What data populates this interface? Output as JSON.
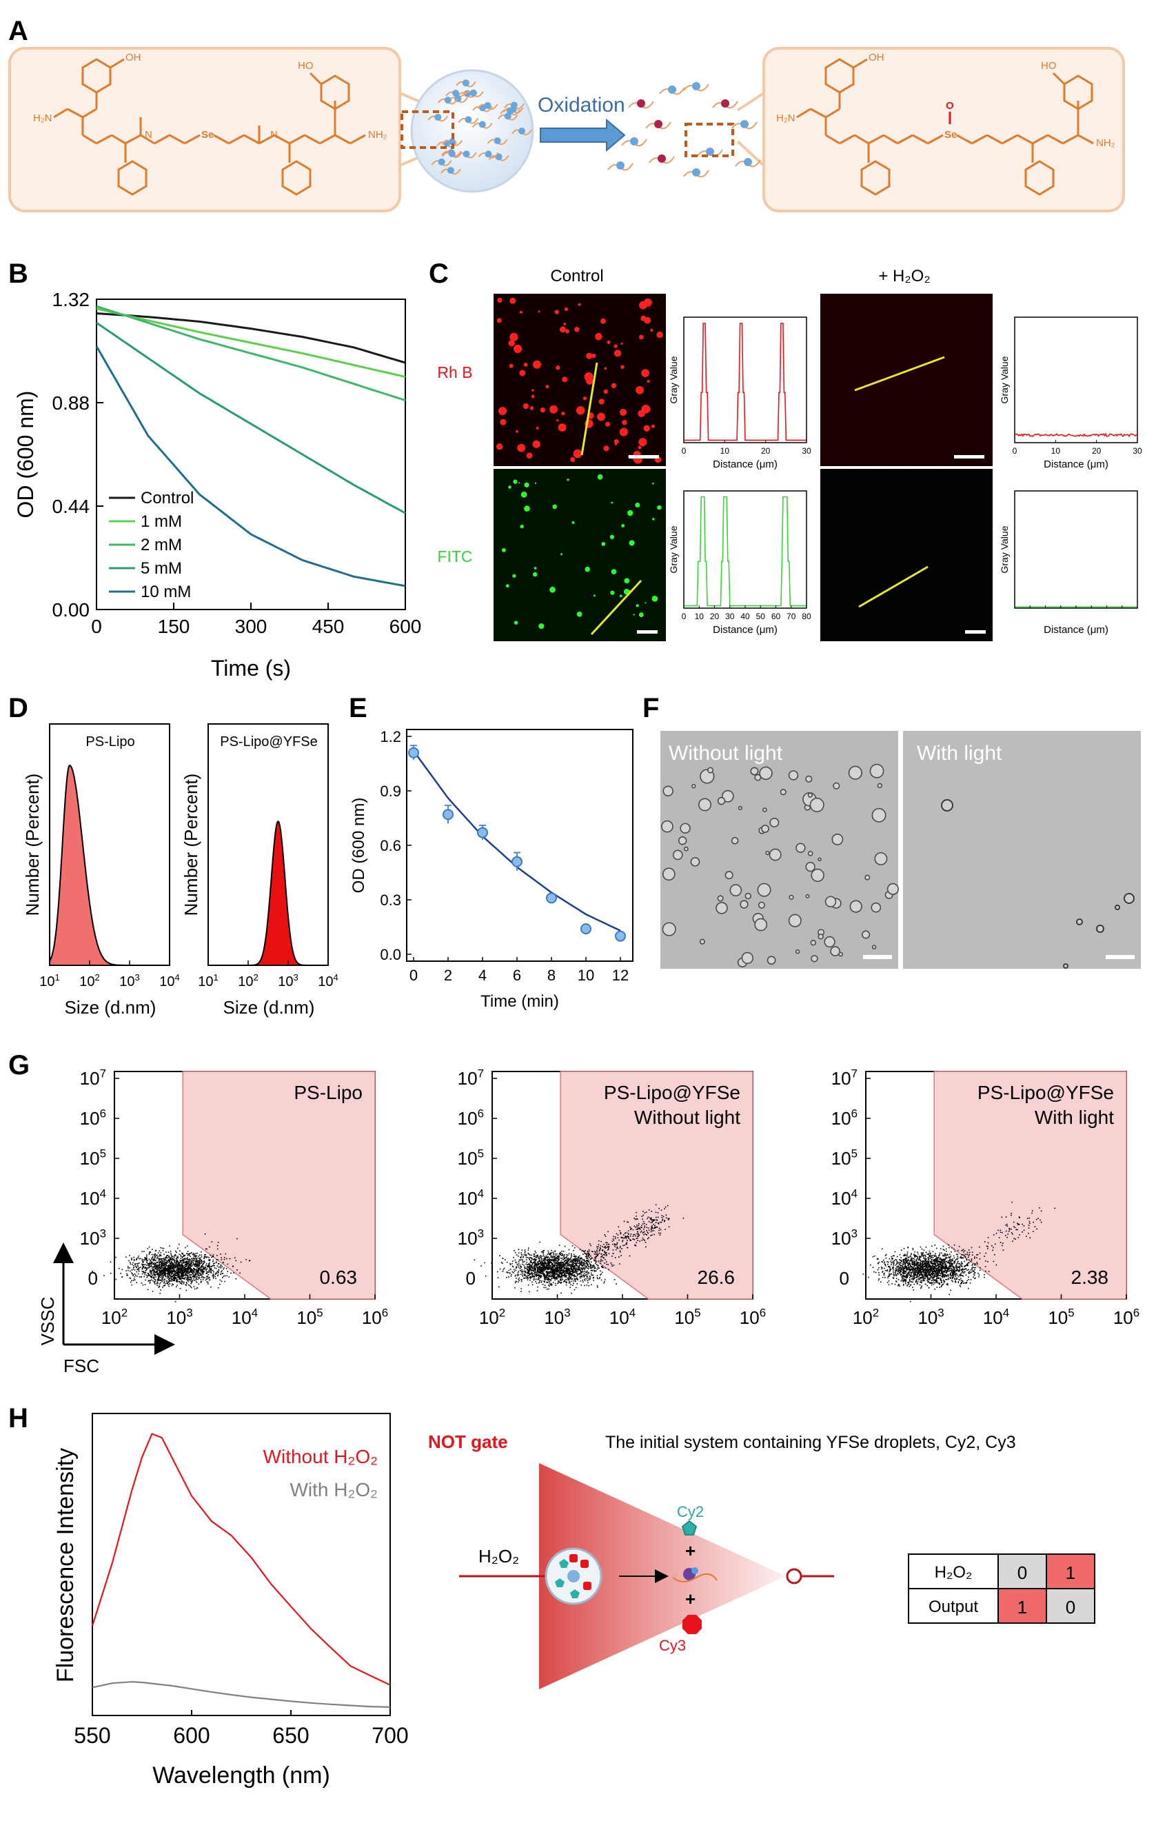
{
  "panel_labels": {
    "A": "A",
    "B": "B",
    "C": "C",
    "D": "D",
    "E": "E",
    "F": "F",
    "G": "G",
    "H": "H"
  },
  "colors": {
    "orange": "#e07a2c",
    "peach_bg": "#fdf0e6",
    "peach_border": "#f4c9a8",
    "red": "#e8141c",
    "green": "#3ad13a",
    "gate_pink": "#f6cccc",
    "arrow_blue": "#5b9bd5"
  },
  "panel_a": {
    "oxidation_label": "Oxidation",
    "atom_se": "Se",
    "atom_o": "O",
    "atom_oh": "OH",
    "atom_ho": "HO",
    "atom_h2n": "H₂N",
    "atom_nh2": "NH₂",
    "atom_n": "N",
    "atom_h": "H"
  },
  "chart_data": [
    {
      "id": "B",
      "type": "line",
      "title": "",
      "xlabel": "Time (s)",
      "ylabel": "OD (600 nm)",
      "xlim": [
        0,
        600
      ],
      "ylim": [
        0,
        1.32
      ],
      "xticks": [
        "0",
        "150",
        "300",
        "450",
        "600"
      ],
      "yticks": [
        "0.00",
        "0.44",
        "0.88",
        "1.32"
      ],
      "x": [
        0,
        100,
        200,
        300,
        400,
        500,
        600
      ],
      "series": [
        {
          "name": "Control",
          "color": "#1a1a1a",
          "values": [
            1.26,
            1.245,
            1.225,
            1.195,
            1.16,
            1.115,
            1.05
          ]
        },
        {
          "name": "1 mM",
          "color": "#5ccf4f",
          "values": [
            1.28,
            1.23,
            1.18,
            1.135,
            1.09,
            1.04,
            0.99
          ]
        },
        {
          "name": "2 mM",
          "color": "#3cb86a",
          "values": [
            1.29,
            1.22,
            1.15,
            1.09,
            1.03,
            0.96,
            0.89
          ]
        },
        {
          "name": "5 mM",
          "color": "#2a9a78",
          "values": [
            1.22,
            1.07,
            0.92,
            0.79,
            0.66,
            0.53,
            0.41
          ]
        },
        {
          "name": "10 mM",
          "color": "#1f6e8c",
          "values": [
            1.12,
            0.74,
            0.49,
            0.32,
            0.21,
            0.14,
            0.1
          ]
        }
      ]
    },
    {
      "id": "E",
      "type": "scatter",
      "xlabel": "Time (min)",
      "ylabel": "OD (600 nm)",
      "xlim": [
        0,
        12
      ],
      "ylim": [
        0,
        1.2
      ],
      "xticks": [
        "0",
        "2",
        "4",
        "6",
        "8",
        "10",
        "12"
      ],
      "yticks": [
        "0.0",
        "0.3",
        "0.6",
        "0.9",
        "1.2"
      ],
      "x": [
        0,
        2,
        4,
        6,
        8,
        10,
        12
      ],
      "values": [
        1.11,
        0.77,
        0.67,
        0.51,
        0.31,
        0.14,
        0.1
      ],
      "errors": [
        0.04,
        0.05,
        0.04,
        0.05,
        0.02,
        0.02,
        0.01
      ],
      "fit": [
        1.12,
        0.86,
        0.65,
        0.48,
        0.34,
        0.22,
        0.13
      ]
    },
    {
      "id": "D1",
      "type": "area",
      "title": "PS-Lipo",
      "xlabel": "Size (d.nm)",
      "ylabel": "Number (Percent)",
      "xticks_exp": [
        "1",
        "2",
        "3",
        "4"
      ],
      "peak_log": 1.5,
      "width_log": 0.18,
      "peak_height": 1.0
    },
    {
      "id": "D2",
      "type": "area",
      "title": "PS-Lipo@YFSe",
      "xlabel": "Size (d.nm)",
      "ylabel": "Number (Percent)",
      "xticks_exp": [
        "1",
        "2",
        "3",
        "4"
      ],
      "peak_log": 2.75,
      "width_log": 0.17,
      "peak_height": 0.72
    },
    {
      "id": "H",
      "type": "line",
      "xlabel": "Wavelength (nm)",
      "ylabel": "Fluorescence Intensity",
      "xlim": [
        550,
        700
      ],
      "xticks": [
        "550",
        "600",
        "650",
        "700"
      ],
      "x": [
        550,
        560,
        570,
        575,
        580,
        585,
        590,
        600,
        610,
        620,
        630,
        640,
        650,
        660,
        670,
        680,
        690,
        700
      ],
      "series": [
        {
          "name": "Without H₂O₂",
          "color": "#e8141c",
          "values": [
            0.3,
            0.52,
            0.78,
            0.9,
            0.98,
            0.97,
            0.9,
            0.76,
            0.67,
            0.62,
            0.54,
            0.45,
            0.37,
            0.29,
            0.22,
            0.16,
            0.12,
            0.09
          ]
        },
        {
          "name": "With H₂O₂",
          "color": "#808080",
          "values": [
            0.08,
            0.095,
            0.1,
            0.098,
            0.094,
            0.09,
            0.086,
            0.075,
            0.064,
            0.054,
            0.045,
            0.038,
            0.031,
            0.025,
            0.02,
            0.016,
            0.012,
            0.01
          ]
        }
      ]
    }
  ],
  "panel_c": {
    "col_control": "Control",
    "col_h2o2": "+ H₂O₂",
    "row_rhb": "Rh B",
    "row_fitc": "FITC",
    "gray_value": "Gray Value",
    "distance": "Distance (μm)",
    "rhb_ticks": [
      "0",
      "10",
      "20",
      "30"
    ],
    "fitc_ticks": [
      "0",
      "10",
      "20",
      "30",
      "40",
      "50",
      "60",
      "70",
      "80"
    ],
    "rhb_peaks": [
      5,
      14,
      24
    ],
    "fitc_peaks": [
      12,
      27,
      66
    ]
  },
  "panel_f": {
    "label_left": "Without light",
    "label_right": "With light"
  },
  "panel_g": {
    "plots": [
      {
        "title": "PS-Lipo",
        "subtitle": "",
        "value": "0.63"
      },
      {
        "title": "PS-Lipo@YFSe",
        "subtitle": "Without light",
        "value": "26.6"
      },
      {
        "title": "PS-Lipo@YFSe",
        "subtitle": "With light",
        "value": "2.38"
      }
    ],
    "yticks_exp": [
      "7",
      "6",
      "5",
      "4",
      "3"
    ],
    "y_zero": "0",
    "xticks_exp": [
      "2",
      "3",
      "4",
      "5",
      "6"
    ],
    "axis_y": "VSSC",
    "axis_x": "FSC"
  },
  "panel_h": {
    "not_gate": "NOT gate",
    "description": "The initial system containing YFSe droplets, Cy2, Cy3",
    "input_label": "H₂O₂",
    "cy2": "Cy2",
    "cy3": "Cy3",
    "plus": "+",
    "table": {
      "row1": [
        "H₂O₂",
        "0",
        "1"
      ],
      "row2": [
        "Output",
        "1",
        "0"
      ]
    }
  }
}
